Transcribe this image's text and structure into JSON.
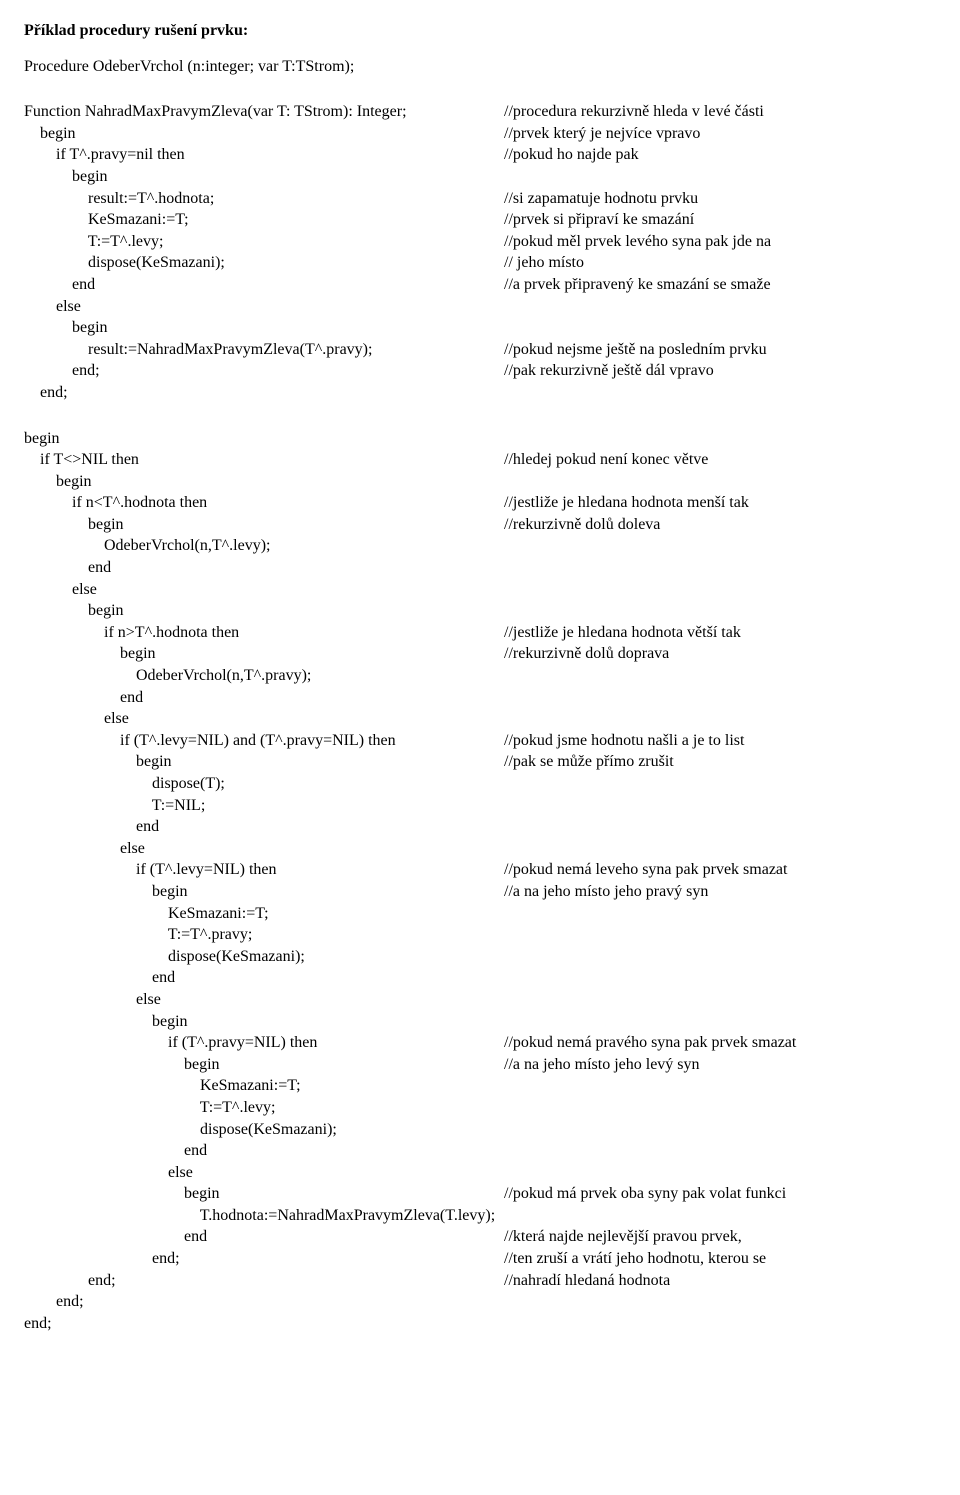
{
  "title": "Příklad procedury rušení prvku:",
  "proc_decl": "Procedure OdeberVrchol (n:integer; var T:TStrom);",
  "block1": [
    {
      "code": "Function NahradMaxPravymZleva(var T: TStrom): Integer;",
      "comment": "//procedura rekurzivně hleda v levé části"
    },
    {
      "code": "    begin",
      "comment": "//prvek který je nejvíce vpravo"
    },
    {
      "code": "        if T^.pravy=nil then",
      "comment": "//pokud ho najde pak"
    },
    {
      "code": "            begin",
      "comment": ""
    },
    {
      "code": "                result:=T^.hodnota;",
      "comment": "//si zapamatuje hodnotu prvku"
    },
    {
      "code": "                KeSmazani:=T;",
      "comment": "//prvek si připraví ke smazání"
    },
    {
      "code": "                T:=T^.levy;",
      "comment": "//pokud měl prvek levého syna pak jde na"
    },
    {
      "code": "                dispose(KeSmazani);",
      "comment": "// jeho místo"
    },
    {
      "code": "            end",
      "comment": "//a prvek připravený ke smazání se smaže"
    },
    {
      "code": "        else",
      "comment": ""
    },
    {
      "code": "            begin",
      "comment": ""
    },
    {
      "code": "                result:=NahradMaxPravymZleva(T^.pravy);",
      "comment": "//pokud nejsme ještě na posledním prvku"
    },
    {
      "code": "            end;",
      "comment": "//pak rekurzivně ještě dál vpravo"
    },
    {
      "code": "    end;",
      "comment": ""
    }
  ],
  "block2": [
    {
      "code": "begin",
      "comment": ""
    },
    {
      "code": "    if T<>NIL then",
      "comment": "//hledej pokud není konec větve"
    },
    {
      "code": "        begin",
      "comment": ""
    },
    {
      "code": "            if n<T^.hodnota then",
      "comment": "//jestliže je hledana hodnota menší tak"
    },
    {
      "code": "                begin",
      "comment": "//rekurzivně dolů doleva"
    },
    {
      "code": "                    OdeberVrchol(n,T^.levy);",
      "comment": ""
    },
    {
      "code": "                end",
      "comment": ""
    },
    {
      "code": "            else",
      "comment": ""
    },
    {
      "code": "                begin",
      "comment": ""
    },
    {
      "code": "                    if n>T^.hodnota then",
      "comment": "//jestliže je hledana hodnota větší tak"
    },
    {
      "code": "                        begin",
      "comment": "//rekurzivně dolů doprava"
    },
    {
      "code": "                            OdeberVrchol(n,T^.pravy);",
      "comment": ""
    },
    {
      "code": "                        end",
      "comment": ""
    },
    {
      "code": "                    else",
      "comment": ""
    },
    {
      "code": "                        if (T^.levy=NIL) and (T^.pravy=NIL) then",
      "comment": "//pokud jsme hodnotu našli a je to list"
    },
    {
      "code": "                            begin",
      "comment": "//pak se může přímo zrušit"
    },
    {
      "code": "                                dispose(T);",
      "comment": ""
    },
    {
      "code": "                                T:=NIL;",
      "comment": ""
    },
    {
      "code": "                            end",
      "comment": ""
    },
    {
      "code": "                        else",
      "comment": ""
    },
    {
      "code": "                            if (T^.levy=NIL) then",
      "comment": "//pokud nemá leveho syna pak prvek smazat"
    },
    {
      "code": "                                begin",
      "comment": "//a na jeho místo jeho pravý syn"
    },
    {
      "code": "                                    KeSmazani:=T;",
      "comment": ""
    },
    {
      "code": "                                    T:=T^.pravy;",
      "comment": ""
    },
    {
      "code": "                                    dispose(KeSmazani);",
      "comment": ""
    },
    {
      "code": "                                end",
      "comment": ""
    },
    {
      "code": "                            else",
      "comment": ""
    },
    {
      "code": "                                begin",
      "comment": ""
    },
    {
      "code": "                                    if (T^.pravy=NIL) then",
      "comment": "//pokud nemá pravého syna pak prvek smazat"
    },
    {
      "code": "                                        begin",
      "comment": "//a na jeho místo jeho levý syn"
    },
    {
      "code": "                                            KeSmazani:=T;",
      "comment": ""
    },
    {
      "code": "                                            T:=T^.levy;",
      "comment": ""
    },
    {
      "code": "                                            dispose(KeSmazani);",
      "comment": ""
    },
    {
      "code": "                                        end",
      "comment": ""
    },
    {
      "code": "                                    else",
      "comment": ""
    },
    {
      "code": "                                        begin",
      "comment": "//pokud má prvek oba syny pak volat funkci"
    },
    {
      "code": "                                            T.hodnota:=NahradMaxPravymZleva(T.levy);",
      "comment": ""
    },
    {
      "code": "                                        end",
      "comment": "//která najde nejlevější pravou prvek,"
    },
    {
      "code": "                                end;",
      "comment": "//ten zruší a vrátí jeho hodnotu, kterou se"
    },
    {
      "code": "                end;",
      "comment": "//nahradí hledaná hodnota"
    },
    {
      "code": "        end;",
      "comment": ""
    },
    {
      "code": "end;",
      "comment": ""
    }
  ],
  "colors": {
    "text": "#000000",
    "background": "#ffffff"
  },
  "fontsize": 16,
  "code_col_width": 480
}
